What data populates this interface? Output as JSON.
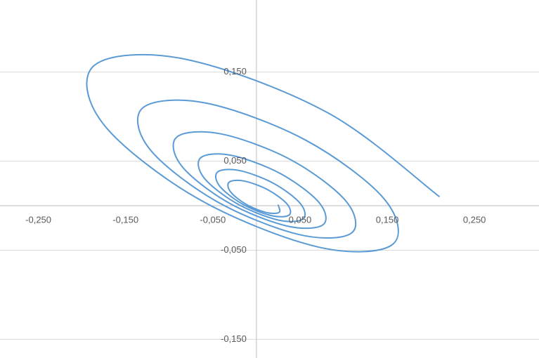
{
  "chart_data": {
    "type": "scatter",
    "series": [
      {
        "color": "#5b9bd5",
        "x": [
          0.21,
          0.0812,
          -0.0824,
          -0.1856,
          -0.1758,
          -0.0679,
          0.0689,
          0.1553,
          0.147,
          0.0569,
          -0.0576,
          -0.1298,
          -0.1231,
          -0.0475,
          0.0482,
          0.1086,
          0.1029,
          0.0398,
          -0.0403,
          -0.091,
          -0.0861,
          -0.0333,
          0.0338,
          0.0761,
          0.072,
          0.0278,
          -0.0283,
          -0.0636,
          -0.0603,
          -0.0233,
          0.0237,
          0.0532,
          0.0504,
          0.0195,
          -0.0198,
          -0.0445,
          -0.0422,
          -0.0163,
          0.0166,
          0.0373,
          0.0353,
          0.0137,
          -0.0139,
          -0.0312,
          -0.0296,
          -0.0115,
          0.0116,
          0.0261,
          0.0248
        ],
        "values": [
          0.01,
          0.1047,
          0.1647,
          0.1578,
          0.0921,
          0.0084,
          -0.0459,
          -0.0441,
          0.007,
          0.0734,
          0.1152,
          0.1103,
          0.0645,
          0.0059,
          -0.0322,
          -0.0309,
          0.0049,
          0.0514,
          0.0806,
          0.0773,
          0.0451,
          0.0041,
          -0.0225,
          -0.0216,
          0.0034,
          0.0359,
          0.0565,
          0.0541,
          0.0316,
          0.0029,
          -0.0158,
          -0.0151,
          0.0024,
          0.0252,
          0.0396,
          0.0379,
          0.0221,
          0.002,
          -0.011,
          -0.0106,
          0.0017,
          0.0176,
          0.0277,
          0.0265,
          0.0155,
          0.0014,
          -0.0077,
          -0.0074,
          0.0012
        ]
      }
    ],
    "xlim": [
      -0.294,
      0.324
    ],
    "ylim": [
      -0.171,
      0.231
    ],
    "xticks": [
      {
        "value": -0.25,
        "label": "-0,250"
      },
      {
        "value": -0.15,
        "label": "-0,150"
      },
      {
        "value": -0.05,
        "label": "-0,050"
      },
      {
        "value": 0.05,
        "label": "0,050"
      },
      {
        "value": 0.15,
        "label": "0,150"
      },
      {
        "value": 0.25,
        "label": "0,250"
      }
    ],
    "yticks": [
      {
        "value": 0.15,
        "label": "0,150"
      },
      {
        "value": 0.05,
        "label": "0,050"
      },
      {
        "value": -0.05,
        "label": "-0,050"
      },
      {
        "value": -0.15,
        "label": "-0,150"
      }
    ],
    "grid": true
  }
}
